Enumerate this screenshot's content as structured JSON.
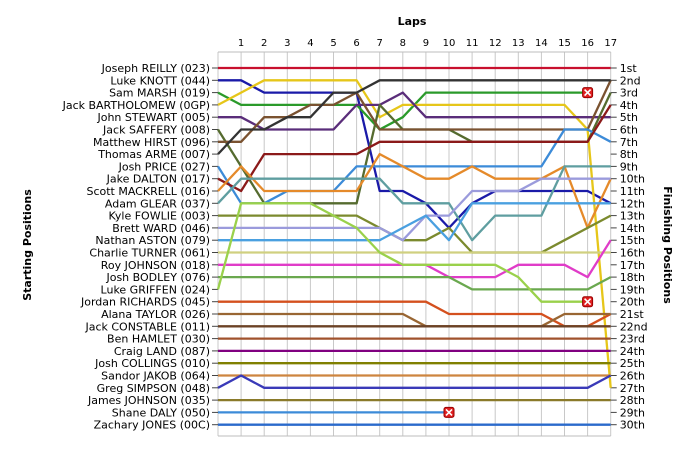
{
  "chart_data": {
    "type": "line",
    "x_axis_title": "Laps",
    "y_left_title": "Starting Positions",
    "y_right_title": "Finishing Positions",
    "laps": [
      1,
      2,
      3,
      4,
      5,
      6,
      7,
      8,
      9,
      10,
      11,
      12,
      13,
      14,
      15,
      16,
      17
    ],
    "grid": true,
    "starting_order": [
      "Joseph REILLY (023)",
      "Luke KNOTT (044)",
      "Sam MARSH (019)",
      "Jack BARTHOLOMEW (0GP)",
      "John STEWART (005)",
      "Jack SAFFERY (008)",
      "Matthew HIRST (096)",
      "Thomas ARME (007)",
      "Josh PRICE (027)",
      "Jake DALTON (017)",
      "Scott MACKRELL (016)",
      "Adam GLEAR (037)",
      "Kyle FOWLIE (003)",
      "Brett WARD (046)",
      "Nathan ASTON (079)",
      "Charlie TURNER (061)",
      "Roy JOHNSON (018)",
      "Josh BODLEY (076)",
      "Luke GRIFFEN (024)",
      "Jordan RICHARDS (045)",
      "Alana TAYLOR (026)",
      "Jack CONSTABLE (011)",
      "Ben HAMLET (030)",
      "Craig LAND (087)",
      "Josh COLLINGS (010)",
      "Sandor JAKOB (064)",
      "Greg SIMPSON (048)",
      "James JOHNSON (035)",
      "Shane DALY (050)",
      "Zachary JONES (00C)"
    ],
    "finishing_positions": [
      "1st",
      "2nd",
      "3rd",
      "4th",
      "5th",
      "6th",
      "7th",
      "8th",
      "9th",
      "10th",
      "11th",
      "12th",
      "13th",
      "14th",
      "15th",
      "16th",
      "17th",
      "18th",
      "19th",
      "20th",
      "21st",
      "22nd",
      "23rd",
      "24th",
      "25th",
      "26th",
      "27th",
      "28th",
      "29th",
      "30th"
    ],
    "series": [
      {
        "start": 1,
        "color": "#c8102e",
        "positions": [
          1,
          1,
          1,
          1,
          1,
          1,
          1,
          1,
          1,
          1,
          1,
          1,
          1,
          1,
          1,
          1,
          1
        ]
      },
      {
        "start": 2,
        "color": "#1a1aa8",
        "positions": [
          2,
          3,
          3,
          3,
          3,
          3,
          11,
          11,
          12,
          14,
          12,
          11,
          11,
          11,
          11,
          11,
          12
        ]
      },
      {
        "start": 3,
        "color": "#2a9a2a",
        "positions": [
          4,
          4,
          4,
          4,
          4,
          4,
          6,
          5,
          3,
          3,
          3,
          3,
          3,
          3,
          3,
          3
        ],
        "retired": true
      },
      {
        "start": 4,
        "color": "#e6c619",
        "positions": [
          3,
          2,
          2,
          2,
          2,
          2,
          5,
          4,
          4,
          4,
          4,
          4,
          4,
          4,
          4,
          6,
          27
        ]
      },
      {
        "start": 5,
        "color": "#5a2d7a",
        "positions": [
          5,
          6,
          6,
          6,
          6,
          4,
          4,
          3,
          5,
          5,
          5,
          5,
          5,
          5,
          5,
          5,
          5
        ]
      },
      {
        "start": 6,
        "color": "#556b2f",
        "positions": [
          9,
          12,
          12,
          12,
          12,
          12,
          4,
          6,
          6,
          6,
          7,
          7,
          7,
          7,
          7,
          7,
          3
        ]
      },
      {
        "start": 7,
        "color": "#7a5230",
        "positions": [
          7,
          5,
          5,
          4,
          4,
          3,
          6,
          6,
          6,
          6,
          6,
          6,
          6,
          6,
          6,
          6,
          2
        ]
      },
      {
        "start": 8,
        "color": "#333333",
        "positions": [
          6,
          6,
          5,
          5,
          3,
          3,
          2,
          2,
          2,
          2,
          2,
          2,
          2,
          2,
          2,
          2,
          2
        ]
      },
      {
        "start": 9,
        "color": "#3c8bd8",
        "positions": [
          12,
          12,
          11,
          11,
          11,
          9,
          9,
          9,
          9,
          9,
          9,
          9,
          9,
          9,
          6,
          6,
          7
        ]
      },
      {
        "start": 10,
        "color": "#8b1a1a",
        "positions": [
          11,
          8,
          8,
          8,
          8,
          8,
          7,
          7,
          7,
          7,
          7,
          7,
          7,
          7,
          7,
          7,
          4
        ]
      },
      {
        "start": 11,
        "color": "#e58a2a",
        "positions": [
          9,
          11,
          11,
          11,
          11,
          11,
          8,
          9,
          10,
          10,
          9,
          10,
          10,
          10,
          9,
          14,
          10
        ]
      },
      {
        "start": 12,
        "color": "#5f9ea0",
        "positions": [
          10,
          10,
          10,
          10,
          10,
          10,
          10,
          12,
          12,
          12,
          15,
          13,
          13,
          13,
          9,
          9,
          9
        ]
      },
      {
        "start": 13,
        "color": "#7b8a2e",
        "positions": [
          13,
          13,
          13,
          13,
          13,
          13,
          14,
          15,
          15,
          14,
          16,
          16,
          16,
          16,
          15,
          14,
          13
        ]
      },
      {
        "start": 14,
        "color": "#9b9bdc",
        "positions": [
          14,
          14,
          14,
          14,
          14,
          14,
          14,
          15,
          13,
          13,
          11,
          11,
          11,
          10,
          10,
          10,
          10
        ]
      },
      {
        "start": 15,
        "color": "#4aa0e0",
        "positions": [
          15,
          15,
          15,
          15,
          15,
          15,
          15,
          14,
          13,
          15,
          12,
          12,
          12,
          12,
          12,
          12,
          12
        ]
      },
      {
        "start": 16,
        "color": "#d0d080",
        "positions": [
          16,
          16,
          16,
          16,
          16,
          16,
          16,
          16,
          16,
          16,
          16,
          16,
          16,
          16,
          16,
          16,
          16
        ]
      },
      {
        "start": 17,
        "color": "#e03cc8",
        "positions": [
          17,
          17,
          17,
          17,
          17,
          17,
          17,
          17,
          17,
          18,
          18,
          18,
          17,
          17,
          17,
          18,
          15
        ]
      },
      {
        "start": 18,
        "color": "#6aa84f",
        "positions": [
          18,
          18,
          18,
          18,
          18,
          18,
          18,
          18,
          18,
          18,
          19,
          19,
          19,
          19,
          19,
          19,
          18
        ]
      },
      {
        "start": 19,
        "color": "#9ad14b",
        "positions": [
          12,
          12,
          12,
          12,
          13,
          14,
          16,
          17,
          17,
          17,
          17,
          17,
          18,
          20,
          20,
          20
        ],
        "retired": true
      },
      {
        "start": 20,
        "color": "#d4501e",
        "positions": [
          20,
          20,
          20,
          20,
          20,
          20,
          20,
          20,
          20,
          21,
          21,
          21,
          21,
          21,
          22,
          22,
          21
        ]
      },
      {
        "start": 21,
        "color": "#996633",
        "positions": [
          21,
          21,
          21,
          21,
          21,
          21,
          21,
          21,
          22,
          22,
          22,
          22,
          22,
          22,
          21,
          21,
          21
        ]
      },
      {
        "start": 22,
        "color": "#6b4226",
        "positions": [
          22,
          22,
          22,
          22,
          22,
          22,
          22,
          22,
          22,
          22,
          22,
          22,
          22,
          22,
          22,
          22,
          22
        ]
      },
      {
        "start": 23,
        "color": "#a0522d",
        "positions": [
          23,
          23,
          23,
          23,
          23,
          23,
          23,
          23,
          23,
          23,
          23,
          23,
          23,
          23,
          23,
          23,
          23
        ]
      },
      {
        "start": 24,
        "color": "#800080",
        "positions": [
          24,
          24,
          24,
          24,
          24,
          24,
          24,
          24,
          24,
          24,
          24,
          24,
          24,
          24,
          24,
          24,
          24
        ]
      },
      {
        "start": 25,
        "color": "#808000",
        "positions": [
          25,
          25,
          25,
          25,
          25,
          25,
          25,
          25,
          25,
          25,
          25,
          25,
          25,
          25,
          25,
          25,
          25
        ]
      },
      {
        "start": 26,
        "color": "#cd853f",
        "positions": [
          26,
          26,
          26,
          26,
          26,
          26,
          26,
          26,
          26,
          26,
          26,
          26,
          26,
          26,
          26,
          26,
          26
        ]
      },
      {
        "start": 27,
        "color": "#3a3ab8",
        "positions": [
          26,
          27,
          27,
          27,
          27,
          27,
          27,
          27,
          27,
          27,
          27,
          27,
          27,
          27,
          27,
          27,
          26
        ]
      },
      {
        "start": 28,
        "color": "#8a7a2a",
        "positions": [
          28,
          28,
          28,
          28,
          28,
          28,
          28,
          28,
          28,
          28,
          28,
          28,
          28,
          28,
          28,
          28,
          28
        ]
      },
      {
        "start": 29,
        "color": "#3c8bd8",
        "positions": [
          29,
          29,
          29,
          29,
          29,
          29,
          29,
          29,
          29,
          29
        ],
        "retired": true
      },
      {
        "start": 30,
        "color": "#2a6acb",
        "positions": [
          30,
          30,
          30,
          30,
          30,
          30,
          30,
          30,
          30,
          30,
          30,
          30,
          30,
          30,
          30,
          30,
          30
        ]
      }
    ]
  }
}
